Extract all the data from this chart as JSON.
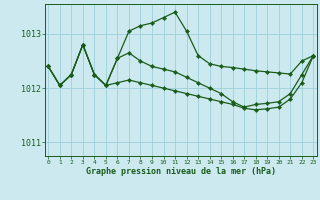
{
  "xlabel": "Graphe pression niveau de la mer (hPa)",
  "bg_color": "#cce9f0",
  "grid_color": "#9dcfda",
  "line_color": "#1a5c1a",
  "ylim": [
    1010.75,
    1013.55
  ],
  "xlim": [
    -0.3,
    23.3
  ],
  "yticks": [
    1011,
    1012,
    1013
  ],
  "xticks": [
    0,
    1,
    2,
    3,
    4,
    5,
    6,
    7,
    8,
    9,
    10,
    11,
    12,
    13,
    14,
    15,
    16,
    17,
    18,
    19,
    20,
    21,
    22,
    23
  ],
  "series": [
    [
      1012.4,
      1012.05,
      1012.25,
      1012.8,
      1012.25,
      1012.05,
      1012.55,
      1013.05,
      1013.15,
      1013.2,
      1013.3,
      1013.4,
      1013.05,
      1012.6,
      1012.45,
      1012.4,
      1012.38,
      1012.35,
      1012.32,
      1012.3,
      1012.28,
      1012.26,
      1012.5,
      1012.6
    ],
    [
      1012.4,
      1012.05,
      1012.25,
      1012.8,
      1012.25,
      1012.05,
      1012.55,
      1012.65,
      1012.5,
      1012.4,
      1012.35,
      1012.3,
      1012.2,
      1012.1,
      1012.0,
      1011.9,
      1011.75,
      1011.65,
      1011.7,
      1011.72,
      1011.75,
      1011.9,
      1012.25,
      1012.6
    ],
    [
      1012.4,
      1012.05,
      1012.25,
      1012.8,
      1012.25,
      1012.05,
      1012.1,
      1012.15,
      1012.1,
      1012.05,
      1012.0,
      1011.95,
      1011.9,
      1011.85,
      1011.8,
      1011.75,
      1011.7,
      1011.63,
      1011.6,
      1011.62,
      1011.65,
      1011.8,
      1012.1,
      1012.6
    ]
  ]
}
